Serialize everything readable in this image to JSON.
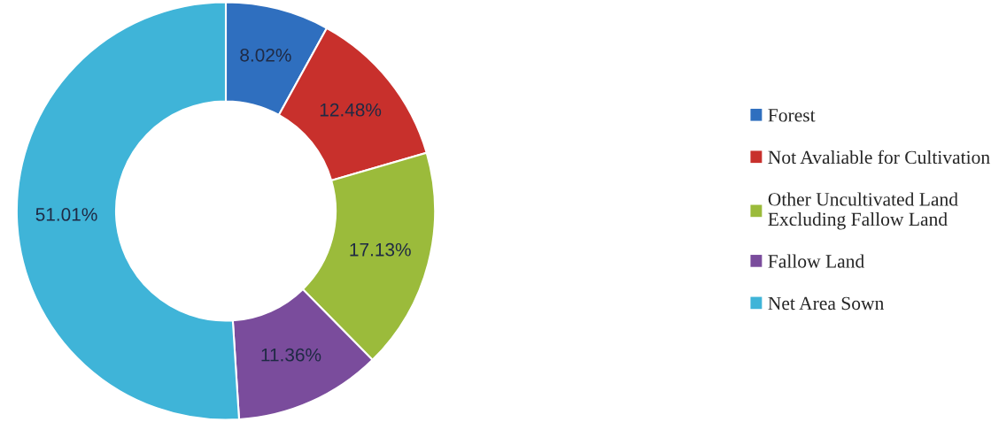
{
  "chart_data": {
    "type": "donut",
    "categories": [
      "Forest",
      "Not Avaliable for Cultivation",
      "Other Uncultivated Land\nExcluding Fallow Land",
      "Fallow Land",
      "Net Area Sown"
    ],
    "values": [
      8.02,
      12.48,
      17.13,
      11.36,
      51.01
    ],
    "value_labels": [
      "8.02%",
      "12.48%",
      "17.13%",
      "11.36%",
      "51.01%"
    ],
    "colors": [
      "#2f6fbf",
      "#c8302c",
      "#9bbb3b",
      "#7a4c9c",
      "#3fb4d8"
    ],
    "legend": "right"
  }
}
